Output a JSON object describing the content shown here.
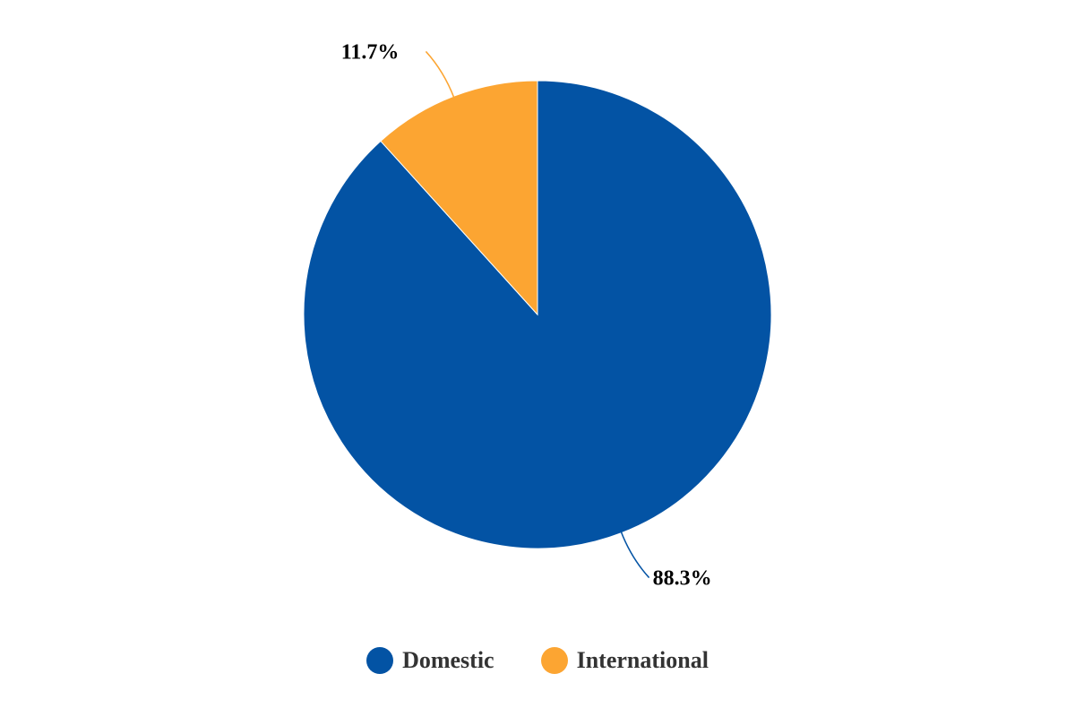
{
  "chart_data": {
    "type": "pie",
    "categories": [
      "Domestic",
      "International"
    ],
    "values": [
      88.3,
      11.7
    ],
    "data_labels": [
      "88.3%",
      "11.7%"
    ],
    "colors": [
      "#0353a4",
      "#fca532"
    ],
    "legend": {
      "placement": "bottom-center",
      "entries": [
        "Domestic",
        "International"
      ]
    },
    "start_angle": "12 o'clock",
    "direction": "clockwise"
  }
}
